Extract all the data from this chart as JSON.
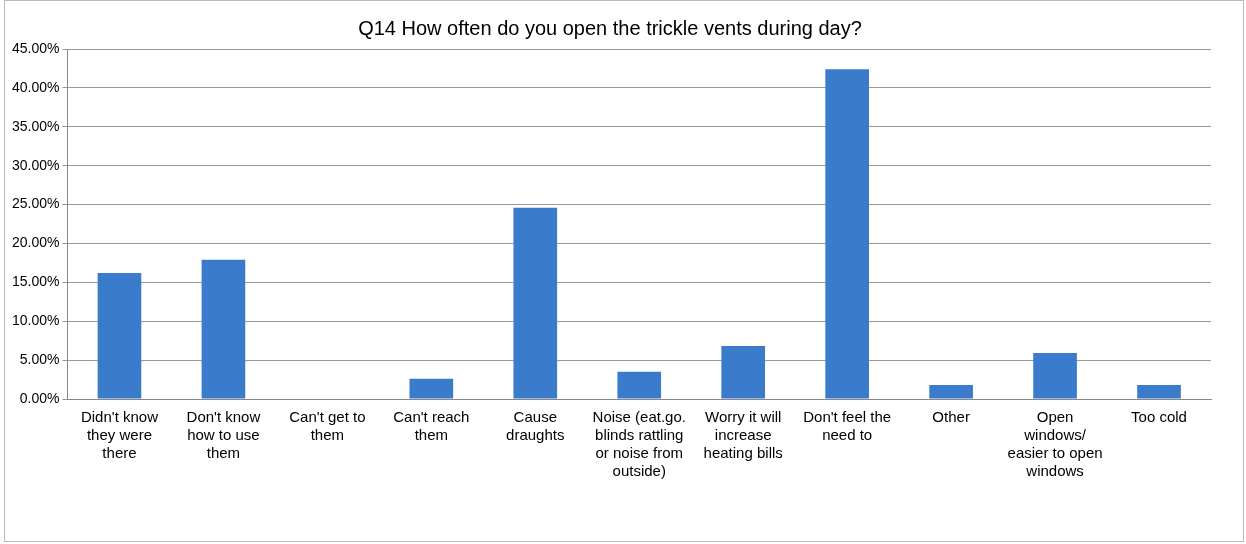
{
  "chart_data": {
    "type": "bar",
    "title": "Q14 How often do you open the trickle vents during day?",
    "categories": [
      "Didn't know they were there",
      "Don't know how to use them",
      "Can't get to them",
      "Can't reach them",
      "Cause draughts",
      "Noise (eat.go. blinds rattling or noise from outside)",
      "Worry it will increase heating bills",
      "Don't feel the need to",
      "Other",
      "Open windows/ easier to open windows",
      "Too cold"
    ],
    "values": [
      16.2,
      17.9,
      0,
      2.6,
      24.6,
      3.5,
      6.8,
      42.4,
      1.8,
      5.9,
      1.8
    ],
    "color": "#3a7bcb",
    "ylim": [
      0,
      45
    ],
    "yticks": [
      {
        "value": 0,
        "label": "0.00%"
      },
      {
        "value": 5,
        "label": "5.00%"
      },
      {
        "value": 10,
        "label": "10.00%"
      },
      {
        "value": 15,
        "label": "15.00%"
      },
      {
        "value": 20,
        "label": "20.00%"
      },
      {
        "value": 25,
        "label": "25.00%"
      },
      {
        "value": 30,
        "label": "30.00%"
      },
      {
        "value": 35,
        "label": "35.00%"
      },
      {
        "value": 40,
        "label": "40.00%"
      },
      {
        "value": 45,
        "label": "45.00%"
      }
    ],
    "grid": "y",
    "legend": false
  }
}
